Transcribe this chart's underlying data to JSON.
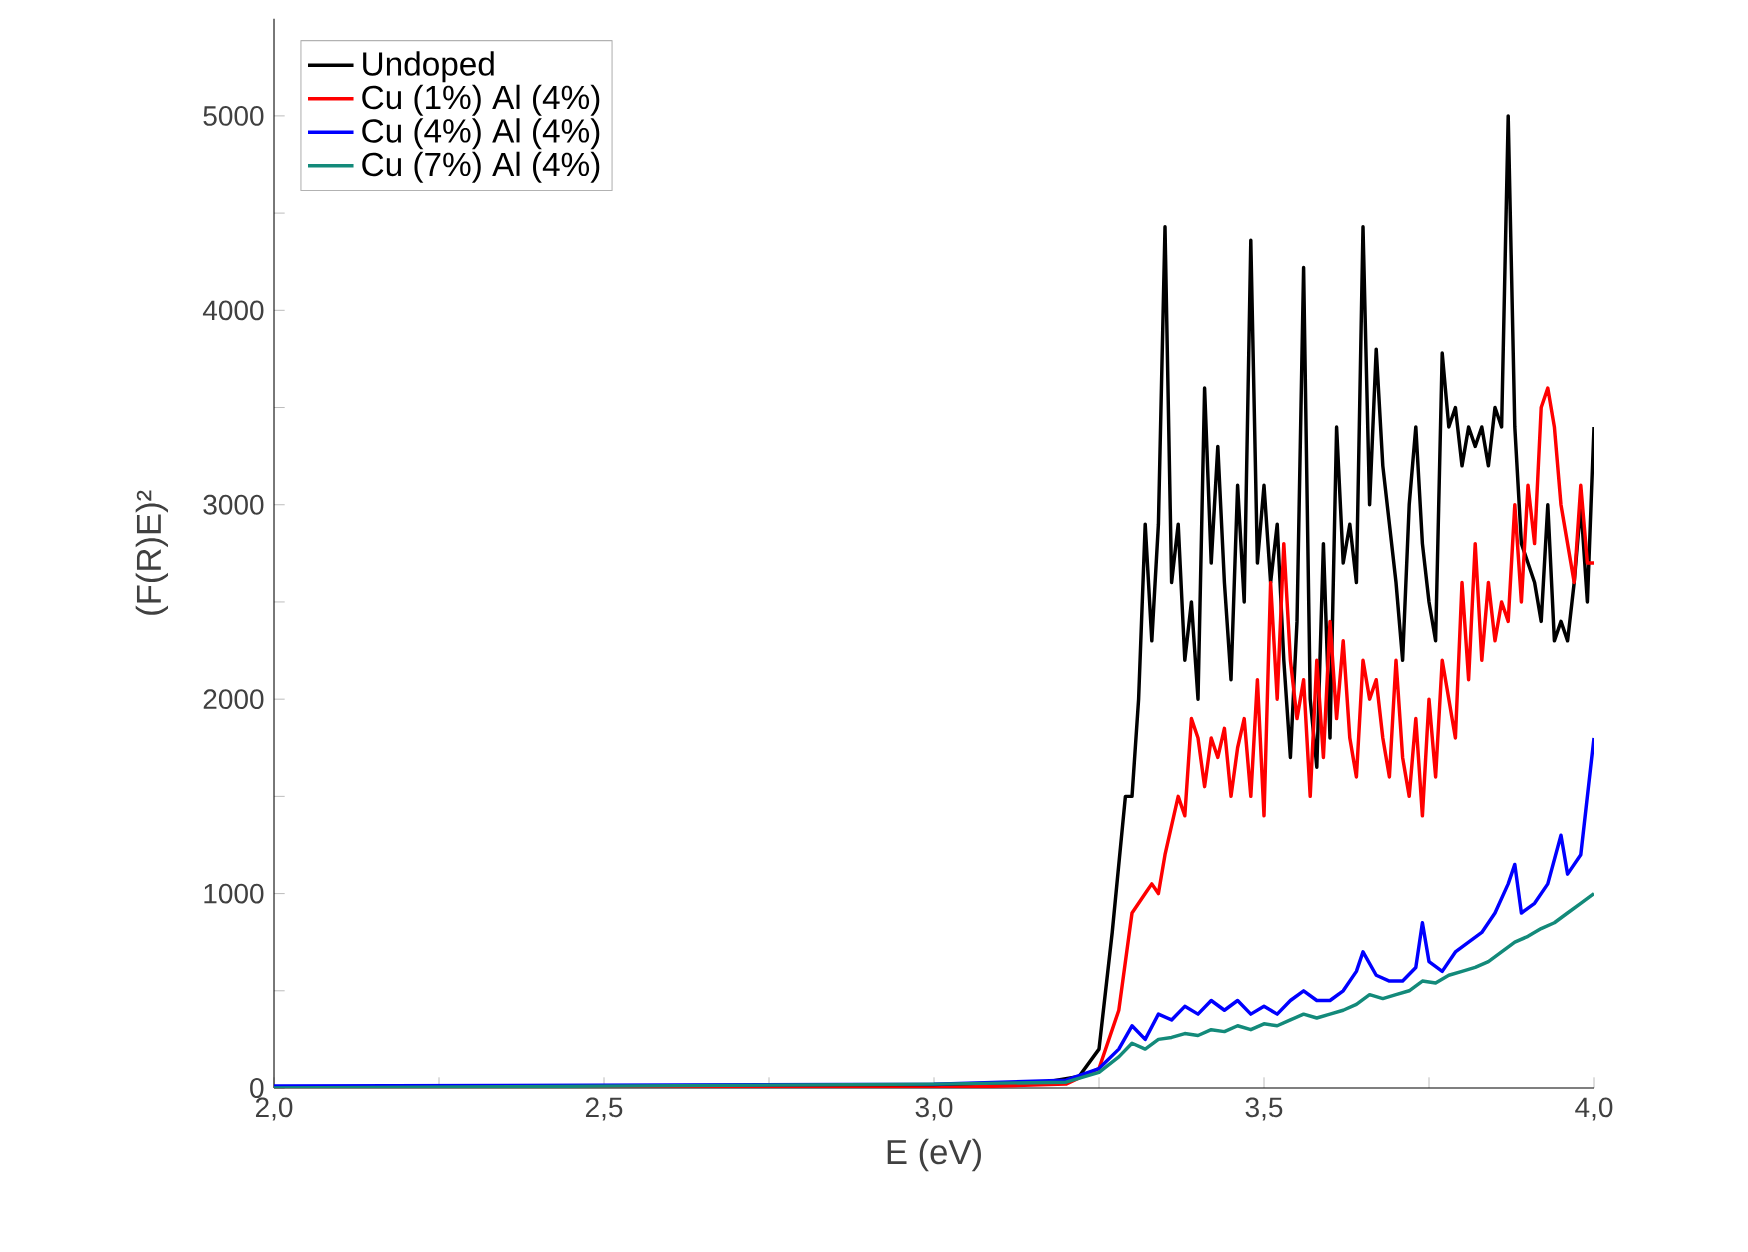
{
  "chart_data": {
    "type": "line",
    "xlabel": "E (eV)",
    "ylabel": "(F(R)E)²",
    "xlim": [
      2.0,
      4.0
    ],
    "xticks": [
      {
        "value": 2.0,
        "label": "2,0"
      },
      {
        "value": 2.25,
        "label": null
      },
      {
        "value": 2.5,
        "label": "2,5"
      },
      {
        "value": 2.75,
        "label": null
      },
      {
        "value": 3.0,
        "label": "3,0"
      },
      {
        "value": 3.25,
        "label": null
      },
      {
        "value": 3.5,
        "label": "3,5"
      },
      {
        "value": 3.75,
        "label": null
      },
      {
        "value": 4.0,
        "label": "4,0"
      }
    ],
    "ylim": [
      0,
      5500
    ],
    "yticks": [
      0,
      {
        "value": 500,
        "label": null
      },
      1000,
      {
        "value": 1500,
        "label": null
      },
      2000,
      {
        "value": 2500,
        "label": null
      },
      3000,
      {
        "value": 3500,
        "label": null
      },
      4000,
      {
        "value": 4500,
        "label": null
      },
      5000
    ],
    "legend": "top left",
    "grid": false,
    "marker": "none",
    "line_style": "solid",
    "series": [
      {
        "name": "Undoped",
        "color": "#000000",
        "x": [
          2.0,
          2.5,
          3.0,
          3.15,
          3.22,
          3.25,
          3.27,
          3.29,
          3.3,
          3.31,
          3.32,
          3.33,
          3.34,
          3.35,
          3.36,
          3.37,
          3.38,
          3.39,
          3.4,
          3.41,
          3.42,
          3.43,
          3.44,
          3.45,
          3.46,
          3.47,
          3.48,
          3.49,
          3.5,
          3.51,
          3.52,
          3.53,
          3.54,
          3.55,
          3.56,
          3.57,
          3.58,
          3.59,
          3.6,
          3.61,
          3.62,
          3.63,
          3.64,
          3.65,
          3.66,
          3.67,
          3.68,
          3.69,
          3.7,
          3.71,
          3.72,
          3.73,
          3.74,
          3.75,
          3.76,
          3.77,
          3.78,
          3.79,
          3.8,
          3.81,
          3.82,
          3.83,
          3.84,
          3.85,
          3.86,
          3.87,
          3.88,
          3.89,
          3.9,
          3.91,
          3.92,
          3.93,
          3.94,
          3.95,
          3.96,
          3.97,
          3.98,
          3.99,
          4.0
        ],
        "values": [
          0,
          0,
          10,
          20,
          60,
          200,
          800,
          1500,
          1500,
          2000,
          2900,
          2300,
          2900,
          4430,
          2600,
          2900,
          2200,
          2500,
          2000,
          3600,
          2700,
          3300,
          2600,
          2100,
          3100,
          2500,
          4360,
          2700,
          3100,
          2600,
          2900,
          2200,
          1700,
          2400,
          4220,
          2000,
          1650,
          2800,
          1800,
          3400,
          2700,
          2900,
          2600,
          4430,
          3000,
          3800,
          3200,
          2900,
          2600,
          2200,
          3000,
          3400,
          2800,
          2500,
          2300,
          3780,
          3400,
          3500,
          3200,
          3400,
          3300,
          3400,
          3200,
          3500,
          3400,
          5000,
          3400,
          2800,
          2700,
          2600,
          2400,
          3000,
          2300,
          2400,
          2300,
          2600,
          3000,
          2500,
          3400
        ]
      },
      {
        "name": "Cu (1%) Al (4%)",
        "color": "#ff0000",
        "x": [
          2.0,
          3.0,
          3.2,
          3.25,
          3.28,
          3.3,
          3.32,
          3.33,
          3.34,
          3.35,
          3.37,
          3.38,
          3.39,
          3.4,
          3.41,
          3.42,
          3.43,
          3.44,
          3.45,
          3.46,
          3.47,
          3.48,
          3.49,
          3.5,
          3.51,
          3.52,
          3.53,
          3.54,
          3.55,
          3.56,
          3.57,
          3.58,
          3.59,
          3.6,
          3.61,
          3.62,
          3.63,
          3.64,
          3.65,
          3.66,
          3.67,
          3.68,
          3.69,
          3.7,
          3.71,
          3.72,
          3.73,
          3.74,
          3.75,
          3.76,
          3.77,
          3.78,
          3.79,
          3.8,
          3.81,
          3.82,
          3.83,
          3.84,
          3.85,
          3.86,
          3.87,
          3.88,
          3.89,
          3.9,
          3.91,
          3.92,
          3.93,
          3.94,
          3.95,
          3.96,
          3.97,
          3.98,
          3.99,
          4.0
        ],
        "values": [
          0,
          0,
          20,
          100,
          400,
          900,
          1000,
          1050,
          1000,
          1200,
          1500,
          1400,
          1900,
          1800,
          1550,
          1800,
          1700,
          1850,
          1500,
          1750,
          1900,
          1500,
          2100,
          1400,
          2600,
          2000,
          2800,
          2200,
          1900,
          2100,
          1500,
          2200,
          1700,
          2400,
          1900,
          2300,
          1800,
          1600,
          2200,
          2000,
          2100,
          1800,
          1600,
          2200,
          1700,
          1500,
          1900,
          1400,
          2000,
          1600,
          2200,
          2000,
          1800,
          2600,
          2100,
          2800,
          2200,
          2600,
          2300,
          2500,
          2400,
          3000,
          2500,
          3100,
          2800,
          3500,
          3600,
          3400,
          3000,
          2800,
          2600,
          3100,
          2700,
          2700
        ]
      },
      {
        "name": "Cu (4%) Al (4%)",
        "color": "#0000ff",
        "x": [
          2.0,
          3.0,
          3.2,
          3.25,
          3.28,
          3.3,
          3.32,
          3.34,
          3.36,
          3.38,
          3.4,
          3.42,
          3.44,
          3.46,
          3.48,
          3.5,
          3.52,
          3.54,
          3.56,
          3.58,
          3.6,
          3.62,
          3.64,
          3.65,
          3.67,
          3.69,
          3.71,
          3.73,
          3.74,
          3.75,
          3.77,
          3.79,
          3.81,
          3.83,
          3.85,
          3.87,
          3.88,
          3.89,
          3.91,
          3.93,
          3.95,
          3.96,
          3.98,
          4.0
        ],
        "values": [
          10,
          20,
          40,
          100,
          200,
          320,
          250,
          380,
          350,
          420,
          380,
          450,
          400,
          450,
          380,
          420,
          380,
          450,
          500,
          450,
          450,
          500,
          600,
          700,
          580,
          550,
          550,
          620,
          850,
          650,
          600,
          700,
          750,
          800,
          900,
          1050,
          1150,
          900,
          950,
          1050,
          1300,
          1100,
          1200,
          1800
        ]
      },
      {
        "name": "Cu (7%) Al (4%)",
        "color": "#138a7a",
        "x": [
          2.0,
          3.0,
          3.2,
          3.25,
          3.28,
          3.3,
          3.32,
          3.34,
          3.36,
          3.38,
          3.4,
          3.42,
          3.44,
          3.46,
          3.48,
          3.5,
          3.52,
          3.54,
          3.56,
          3.58,
          3.6,
          3.62,
          3.64,
          3.66,
          3.68,
          3.7,
          3.72,
          3.74,
          3.76,
          3.78,
          3.8,
          3.82,
          3.84,
          3.86,
          3.88,
          3.9,
          3.92,
          3.94,
          3.96,
          3.98,
          4.0
        ],
        "values": [
          0,
          20,
          30,
          80,
          160,
          230,
          200,
          250,
          260,
          280,
          270,
          300,
          290,
          320,
          300,
          330,
          320,
          350,
          380,
          360,
          380,
          400,
          430,
          480,
          460,
          480,
          500,
          550,
          540,
          580,
          600,
          620,
          650,
          700,
          750,
          780,
          820,
          850,
          900,
          950,
          1000
        ]
      }
    ]
  }
}
